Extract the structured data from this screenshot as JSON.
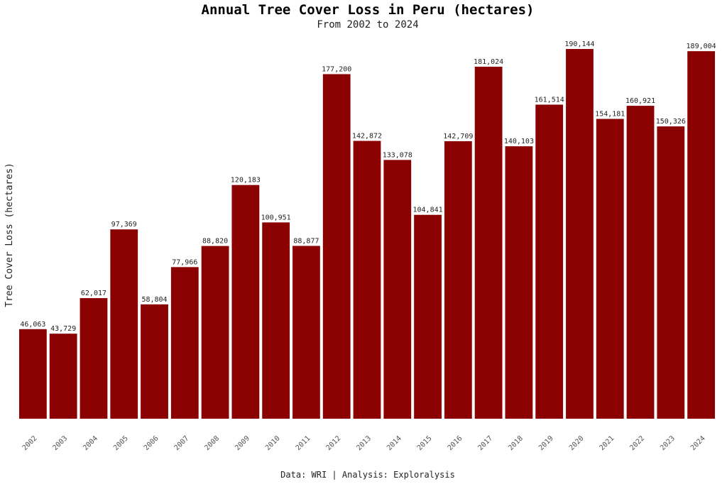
{
  "chart_data": {
    "type": "bar",
    "title": "Annual Tree Cover Loss in Peru (hectares)",
    "subtitle": "From 2002 to 2024",
    "xlabel": "",
    "ylabel": "Tree Cover Loss (hectares)",
    "caption": "Data: WRI | Analysis: Exploralysis",
    "ylim": [
      0,
      200000
    ],
    "grid": false,
    "bar_color": "#8b0000",
    "categories": [
      "2002",
      "2003",
      "2004",
      "2005",
      "2006",
      "2007",
      "2008",
      "2009",
      "2010",
      "2011",
      "2012",
      "2013",
      "2014",
      "2015",
      "2016",
      "2017",
      "2018",
      "2019",
      "2020",
      "2021",
      "2022",
      "2023",
      "2024"
    ],
    "values": [
      46063,
      43729,
      62017,
      97369,
      58804,
      77966,
      88820,
      120183,
      100951,
      88877,
      177200,
      142872,
      133078,
      104841,
      142709,
      181024,
      140103,
      161514,
      190144,
      154181,
      160921,
      150326,
      189004
    ],
    "labels": [
      "46,063",
      "43,729",
      "62,017",
      "97,369",
      "58,804",
      "77,966",
      "88,820",
      "120,183",
      "100,951",
      "88,877",
      "177,200",
      "142,872",
      "133,078",
      "104,841",
      "142,709",
      "181,024",
      "140,103",
      "161,514",
      "190,144",
      "154,181",
      "160,921",
      "150,326",
      "189,004"
    ]
  }
}
